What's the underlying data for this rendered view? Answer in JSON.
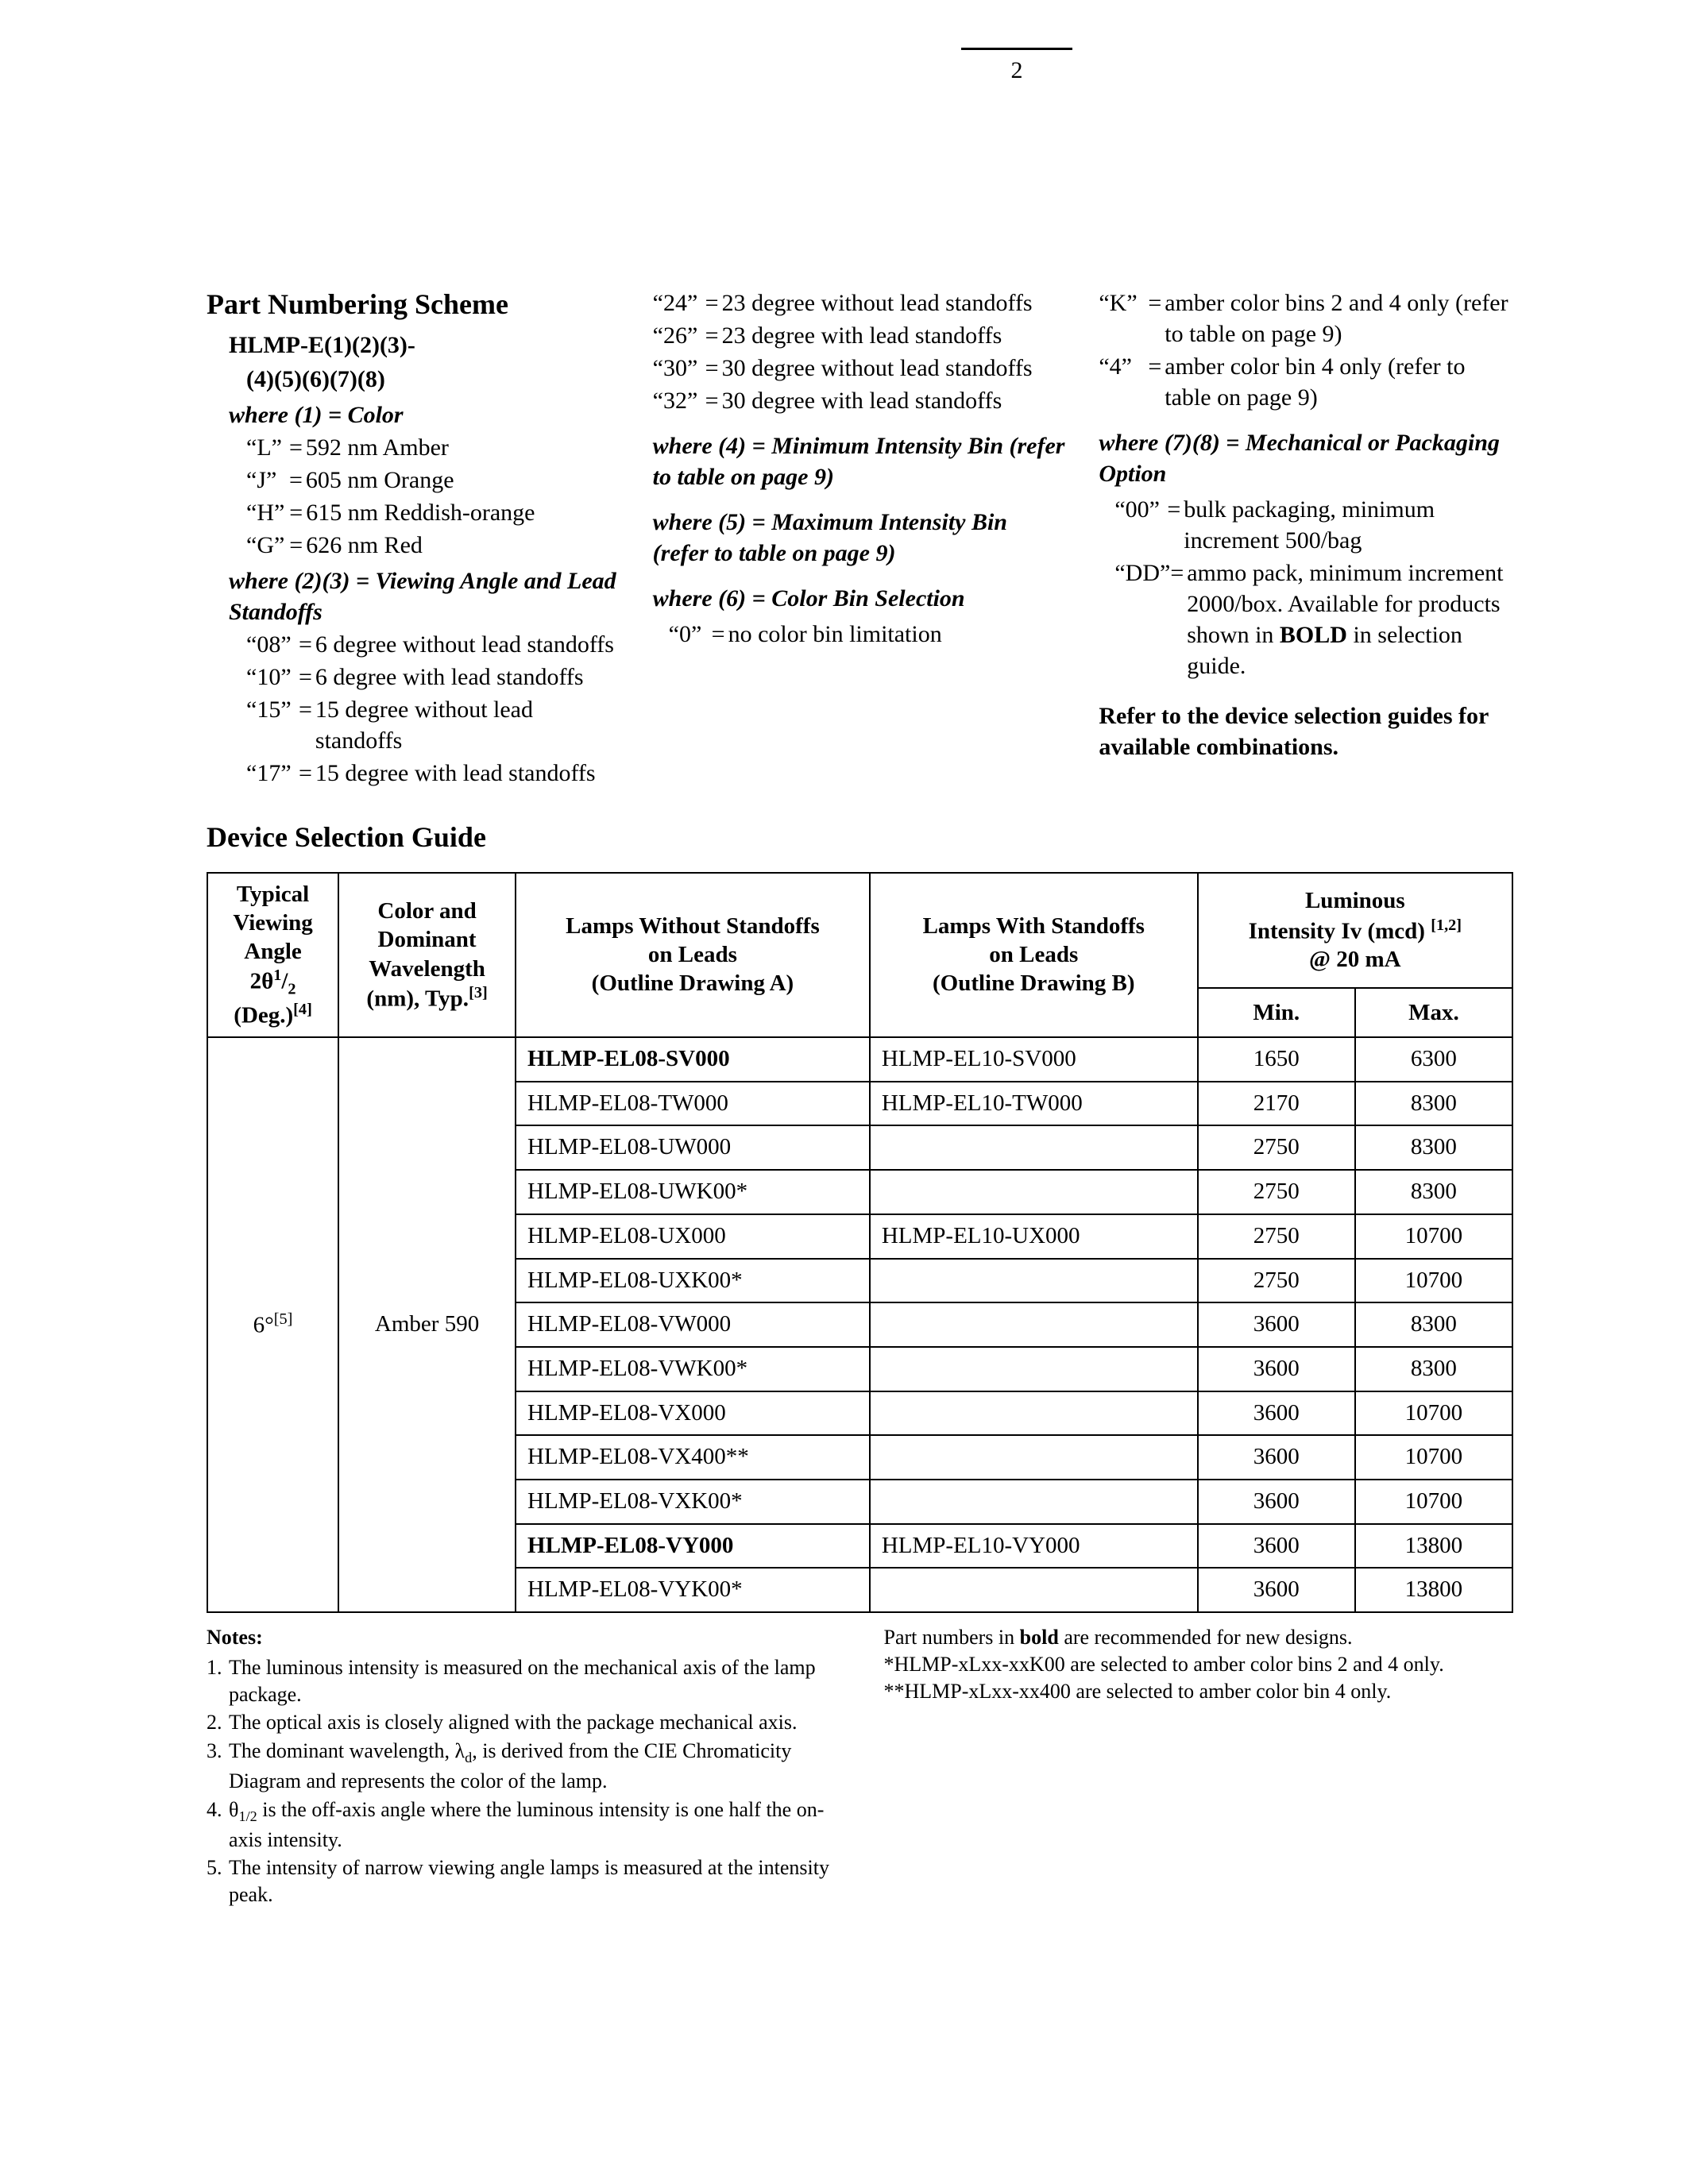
{
  "page_number": "2",
  "scheme": {
    "heading": "Part Numbering Scheme",
    "pattern1": "HLMP-E(1)(2)(3)-",
    "pattern2": "(4)(5)(6)(7)(8)",
    "where1": "where (1) = Color",
    "c1": [
      {
        "k": "“L”",
        "v": "592 nm Amber"
      },
      {
        "k": "“J”",
        "v": "605 nm Orange"
      },
      {
        "k": "“H”",
        "v": "615 nm Reddish-orange"
      },
      {
        "k": "“G”",
        "v": "626 nm Red"
      }
    ],
    "where23": "where (2)(3) = Viewing Angle and Lead Standoffs",
    "c23a": [
      {
        "k": "“08”",
        "v": "6 degree without lead standoffs"
      },
      {
        "k": "“10”",
        "v": "6 degree with lead standoffs"
      },
      {
        "k": "“15”",
        "v": "15 degree without lead standoffs"
      },
      {
        "k": "“17”",
        "v": "15 degree with lead standoffs"
      }
    ],
    "c23b": [
      {
        "k": "“24”",
        "v": "23 degree without lead standoffs"
      },
      {
        "k": "“26”",
        "v": "23 degree with lead standoffs"
      },
      {
        "k": "“30”",
        "v": "30 degree without lead standoffs"
      },
      {
        "k": "“32”",
        "v": "30 degree with lead standoffs"
      }
    ],
    "where4": "where (4) = Minimum Intensity Bin (refer to table on page 9)",
    "where5": "where (5) = Maximum Intensity Bin (refer to table on page 9)",
    "where6": "where (6) = Color Bin Selection",
    "c6": [
      {
        "k": "“0”",
        "v": "no color bin limitation"
      }
    ],
    "c6b": [
      {
        "k": "“K”",
        "v": "amber color bins 2 and 4 only (refer to table on page 9)"
      },
      {
        "k": "“4”",
        "v": "amber color bin 4 only (refer to table on page 9)"
      }
    ],
    "where78": "where (7)(8) = Mechanical or Packaging Option",
    "c78": [
      {
        "k": "“00”",
        "v": "bulk packaging, minimum increment 500/bag"
      }
    ],
    "c78dd_key": "“DD”",
    "c78dd_pre": "ammo pack, minimum increment 2000/box. Available for products shown in ",
    "c78dd_bold": "BOLD",
    "c78dd_post": " in selection guide.",
    "closing": "Refer to the device selection guides for available combinations."
  },
  "dsg_heading": "Device Selection Guide",
  "table": {
    "h_angle_html": "Typical<br>Viewing<br>Angle<br>2θ<sup>1</sup>/<sub>2</sub><br>(Deg.)<sup>[4]</sup>",
    "h_color_html": "Color and<br>Dominant<br>Wavelength<br>(nm), Typ.<sup>[3]</sup>",
    "h_lw_html": "Lamps Without Standoffs<br>on Leads<br>(Outline Drawing A)",
    "h_ls_html": "Lamps With Standoffs<br>on Leads<br>(Outline Drawing B)",
    "h_lum_html": "Luminous<br>Intensity Iv (mcd) <sup>[1,2]</sup><br>@ 20 mA",
    "h_min": "Min.",
    "h_max": "Max.",
    "angle_html": "6°<sup>[5]</sup>",
    "color": "Amber 590",
    "rows": [
      {
        "a": "HLMP-EL08-SV000",
        "abold": true,
        "b": "HLMP-EL10-SV000",
        "min": "1650",
        "max": "6300"
      },
      {
        "a": "HLMP-EL08-TW000",
        "b": "HLMP-EL10-TW000",
        "min": "2170",
        "max": "8300"
      },
      {
        "a": "HLMP-EL08-UW000",
        "b": "",
        "min": "2750",
        "max": "8300"
      },
      {
        "a": "HLMP-EL08-UWK00*",
        "b": "",
        "min": "2750",
        "max": "8300"
      },
      {
        "a": "HLMP-EL08-UX000",
        "b": "HLMP-EL10-UX000",
        "min": "2750",
        "max": "10700"
      },
      {
        "a": "HLMP-EL08-UXK00*",
        "b": "",
        "min": "2750",
        "max": "10700"
      },
      {
        "a": "HLMP-EL08-VW000",
        "b": "",
        "min": "3600",
        "max": "8300"
      },
      {
        "a": "HLMP-EL08-VWK00*",
        "b": "",
        "min": "3600",
        "max": "8300"
      },
      {
        "a": "HLMP-EL08-VX000",
        "b": "",
        "min": "3600",
        "max": "10700"
      },
      {
        "a": "HLMP-EL08-VX400**",
        "b": "",
        "min": "3600",
        "max": "10700"
      },
      {
        "a": "HLMP-EL08-VXK00*",
        "b": "",
        "min": "3600",
        "max": "10700"
      },
      {
        "a": "HLMP-EL08-VY000",
        "abold": true,
        "b": "HLMP-EL10-VY000",
        "min": "3600",
        "max": "13800"
      },
      {
        "a": "HLMP-EL08-VYK00*",
        "b": "",
        "min": "3600",
        "max": "13800"
      }
    ]
  },
  "notes": {
    "heading": "Notes:",
    "leftHtml": [
      "The luminous intensity is measured on the mechanical axis of the lamp package.",
      "The optical axis is closely aligned with the package mechanical axis.",
      "The dominant wavelength, λ<sub>d</sub>, is derived from the CIE Chromaticity Diagram and represents the color of the lamp.",
      "θ<sub>1/2</sub> is the off-axis angle where the luminous intensity is one half the on-axis intensity.",
      "The intensity of narrow viewing angle lamps is measured at the intensity peak."
    ],
    "r1_pre": "Part numbers in ",
    "r1_bold": "bold",
    "r1_post": " are recommended for new designs.",
    "r2": "*HLMP-xLxx-xxK00 are selected to amber color bins 2 and 4 only.",
    "r3": "**HLMP-xLxx-xx400 are selected to amber color bin 4 only."
  }
}
